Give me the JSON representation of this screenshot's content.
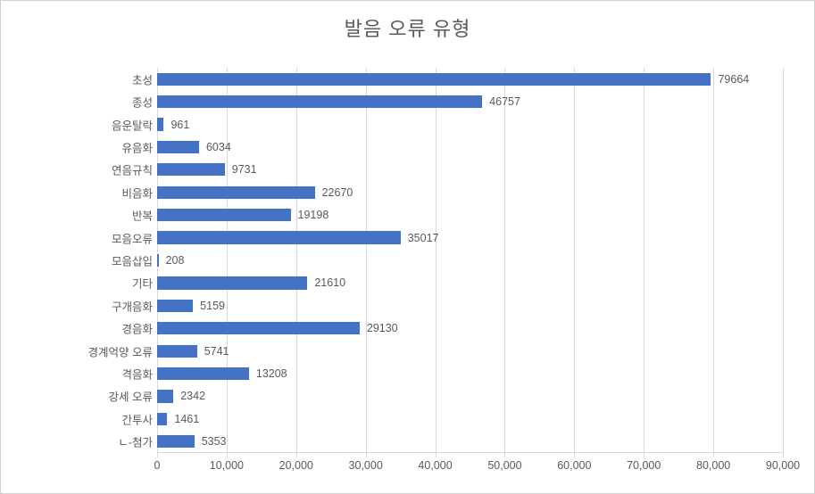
{
  "chart": {
    "type": "bar-horizontal",
    "title": "발음 오류 유형",
    "title_fontsize": 22,
    "title_color": "#595959",
    "background_color": "#ffffff",
    "border_color": "#d0d0d0",
    "bar_color": "#4472c4",
    "label_color": "#595959",
    "label_fontsize": 12.5,
    "grid_color": "#d9d9d9",
    "xlim": [
      0,
      90000
    ],
    "xtick_step": 10000,
    "xtick_labels": [
      "0",
      "10,000",
      "20,000",
      "30,000",
      "40,000",
      "50,000",
      "60,000",
      "70,000",
      "80,000",
      "90,000"
    ],
    "bar_width_ratio": 0.56,
    "categories": [
      "초성",
      "종성",
      "음운탈락",
      "유음화",
      "연음규칙",
      "비음화",
      "반복",
      "모음오류",
      "모음삽입",
      "기타",
      "구개음화",
      "경음화",
      "경계억양 오류",
      "격음화",
      "강세 오류",
      "간투사",
      "ㄴ-첨가"
    ],
    "values": [
      79664,
      46757,
      961,
      6034,
      9731,
      22670,
      19198,
      35017,
      208,
      21610,
      5159,
      29130,
      5741,
      13208,
      2342,
      1461,
      5353
    ]
  }
}
